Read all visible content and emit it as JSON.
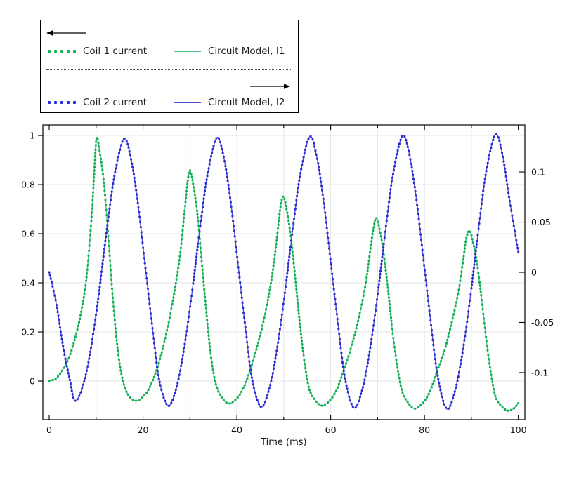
{
  "chart_data": {
    "type": "line",
    "title": "",
    "xlabel": "Time (ms)",
    "x_axis": {
      "lim": [
        -1.35,
        101.4
      ],
      "major_ticks": [
        0,
        20,
        40,
        60,
        80,
        100
      ],
      "major_labels": [
        "0",
        "20",
        "40",
        "60",
        "80",
        "100"
      ],
      "minor_ticks": [
        10,
        30,
        50,
        70,
        90
      ],
      "grid_at": [
        10,
        20,
        30,
        40,
        50,
        60,
        70,
        80,
        90
      ]
    },
    "y_axis_left": {
      "lim": [
        -0.157,
        1.043
      ],
      "ticks": [
        0,
        0.2,
        0.4,
        0.6,
        0.8,
        1
      ],
      "labels": [
        "0",
        "0.2",
        "0.4",
        "0.6",
        "0.8",
        "1"
      ],
      "grid": true
    },
    "y_axis_right": {
      "lim": [
        -0.1469,
        0.1469
      ],
      "ticks": [
        -0.1,
        -0.05,
        0,
        0.05,
        0.1
      ],
      "labels": [
        "-0.1",
        "-0.05",
        "0",
        "0.05",
        "0.1"
      ],
      "grid": false
    },
    "curves": {
      "I1": [
        [
          0,
          0
        ],
        [
          1.5,
          0.012
        ],
        [
          3,
          0.05
        ],
        [
          4.5,
          0.11
        ],
        [
          6,
          0.21
        ],
        [
          7,
          0.3
        ],
        [
          8,
          0.43
        ],
        [
          9,
          0.66
        ],
        [
          9.6,
          0.85
        ],
        [
          10.1,
          0.99
        ],
        [
          10.8,
          0.93
        ],
        [
          11.7,
          0.8
        ],
        [
          12.7,
          0.56
        ],
        [
          13.6,
          0.33
        ],
        [
          14.6,
          0.13
        ],
        [
          15.6,
          0.01
        ],
        [
          16.8,
          -0.055
        ],
        [
          18.5,
          -0.08
        ],
        [
          20.3,
          -0.058
        ],
        [
          21.8,
          -0.01
        ],
        [
          23.3,
          0.07
        ],
        [
          24.8,
          0.18
        ],
        [
          26.3,
          0.32
        ],
        [
          27.8,
          0.5
        ],
        [
          28.9,
          0.7
        ],
        [
          29.5,
          0.81
        ],
        [
          30,
          0.858
        ],
        [
          30.7,
          0.8
        ],
        [
          31.6,
          0.68
        ],
        [
          32.6,
          0.47
        ],
        [
          33.5,
          0.28
        ],
        [
          34.5,
          0.1
        ],
        [
          35.5,
          -0.01
        ],
        [
          36.7,
          -0.065
        ],
        [
          38.3,
          -0.091
        ],
        [
          40.1,
          -0.068
        ],
        [
          41.6,
          -0.02
        ],
        [
          43.1,
          0.06
        ],
        [
          44.6,
          0.16
        ],
        [
          46.1,
          0.28
        ],
        [
          47.6,
          0.44
        ],
        [
          48.7,
          0.61
        ],
        [
          49.3,
          0.71
        ],
        [
          49.9,
          0.752
        ],
        [
          50.6,
          0.7
        ],
        [
          51.5,
          0.59
        ],
        [
          52.5,
          0.41
        ],
        [
          53.4,
          0.24
        ],
        [
          54.4,
          0.08
        ],
        [
          55.4,
          -0.03
        ],
        [
          56.6,
          -0.075
        ],
        [
          58.1,
          -0.1
        ],
        [
          59.9,
          -0.077
        ],
        [
          61.4,
          -0.03
        ],
        [
          62.9,
          0.05
        ],
        [
          64.4,
          0.14
        ],
        [
          65.9,
          0.25
        ],
        [
          67.4,
          0.39
        ],
        [
          68.5,
          0.54
        ],
        [
          69.1,
          0.62
        ],
        [
          69.7,
          0.664
        ],
        [
          70.4,
          0.62
        ],
        [
          71.3,
          0.52
        ],
        [
          72.3,
          0.36
        ],
        [
          73.2,
          0.2
        ],
        [
          74.2,
          0.06
        ],
        [
          75.2,
          -0.04
        ],
        [
          76.4,
          -0.085
        ],
        [
          77.9,
          -0.112
        ],
        [
          79.7,
          -0.088
        ],
        [
          81.2,
          -0.04
        ],
        [
          82.7,
          0.04
        ],
        [
          84.2,
          0.12
        ],
        [
          85.7,
          0.23
        ],
        [
          87.2,
          0.36
        ],
        [
          88.3,
          0.5
        ],
        [
          88.9,
          0.58
        ],
        [
          89.6,
          0.613
        ],
        [
          90.3,
          0.57
        ],
        [
          91.2,
          0.48
        ],
        [
          92.2,
          0.33
        ],
        [
          93.1,
          0.18
        ],
        [
          94.1,
          0.04
        ],
        [
          95.1,
          -0.06
        ],
        [
          96.3,
          -0.1
        ],
        [
          97.7,
          -0.12
        ],
        [
          99,
          -0.112
        ],
        [
          100,
          -0.09
        ]
      ],
      "I2": [
        [
          0,
          0
        ],
        [
          1.5,
          -0.031
        ],
        [
          3,
          -0.075
        ],
        [
          4.3,
          -0.105
        ],
        [
          5.5,
          -0.128
        ],
        [
          7.2,
          -0.113
        ],
        [
          8.7,
          -0.081
        ],
        [
          10.4,
          -0.028
        ],
        [
          11.2,
          0.002
        ],
        [
          12.4,
          0.047
        ],
        [
          13.9,
          0.096
        ],
        [
          15.9,
          0.133
        ],
        [
          17.4,
          0.114
        ],
        [
          18.9,
          0.069
        ],
        [
          20.4,
          0.009
        ],
        [
          21.9,
          -0.051
        ],
        [
          23.4,
          -0.106
        ],
        [
          25.3,
          -0.133
        ],
        [
          27,
          -0.117
        ],
        [
          28.5,
          -0.083
        ],
        [
          30.2,
          -0.029
        ],
        [
          32.2,
          0.046
        ],
        [
          33.7,
          0.096
        ],
        [
          35.7,
          0.134
        ],
        [
          37.2,
          0.115
        ],
        [
          38.7,
          0.07
        ],
        [
          40.2,
          0.01
        ],
        [
          41.7,
          -0.05
        ],
        [
          43.2,
          -0.105
        ],
        [
          45.1,
          -0.134
        ],
        [
          46.8,
          -0.118
        ],
        [
          48.3,
          -0.084
        ],
        [
          50,
          -0.029
        ],
        [
          52,
          0.046
        ],
        [
          53.5,
          0.097
        ],
        [
          55.5,
          0.135
        ],
        [
          57,
          0.116
        ],
        [
          58.5,
          0.071
        ],
        [
          60,
          0.011
        ],
        [
          61.5,
          -0.049
        ],
        [
          63,
          -0.104
        ],
        [
          64.9,
          -0.135
        ],
        [
          66.6,
          -0.119
        ],
        [
          68.1,
          -0.085
        ],
        [
          69.8,
          -0.03
        ],
        [
          71.8,
          0.046
        ],
        [
          73.3,
          0.098
        ],
        [
          75.3,
          0.136
        ],
        [
          76.8,
          0.117
        ],
        [
          78.3,
          0.072
        ],
        [
          79.8,
          0.012
        ],
        [
          81.3,
          -0.048
        ],
        [
          82.8,
          -0.103
        ],
        [
          84.7,
          -0.136
        ],
        [
          86.4,
          -0.12
        ],
        [
          87.9,
          -0.086
        ],
        [
          89.6,
          -0.031
        ],
        [
          91.6,
          0.046
        ],
        [
          93.1,
          0.099
        ],
        [
          95.1,
          0.137
        ],
        [
          96.6,
          0.118
        ],
        [
          98.1,
          0.073
        ],
        [
          100,
          0.02
        ]
      ]
    },
    "series": [
      {
        "label": "Coil 1 current",
        "curve": "I1",
        "axis": "left",
        "style": "dots",
        "color": "#10ae55"
      },
      {
        "label": "Circuit Model, I1",
        "curve": "I1",
        "axis": "left",
        "style": "solid",
        "color": "#52c183"
      },
      {
        "label": "Coil 2 current",
        "curve": "I2",
        "axis": "right",
        "style": "dots",
        "color": "#2a2ad2"
      },
      {
        "label": "Circuit Model, I2",
        "curve": "I2",
        "axis": "right",
        "style": "solid",
        "color": "#4d4dd0"
      }
    ],
    "legend": {
      "position": "top-left",
      "left_axis_arrow": "left",
      "right_axis_arrow": "right",
      "items": [
        {
          "label": "Coil 1 current",
          "swatch": "dots",
          "color": "#10ae55"
        },
        {
          "label": "Circuit Model, I1",
          "swatch": "line",
          "color": "#52c183"
        },
        {
          "label": "Coil 2 current",
          "swatch": "dots",
          "color": "#2a2ad2"
        },
        {
          "label": "Circuit Model, I2",
          "swatch": "line",
          "color": "#4d4dd0"
        }
      ]
    },
    "colors": {
      "grid": "#e6e6e6",
      "border": "#000000",
      "text": "#141414"
    }
  }
}
